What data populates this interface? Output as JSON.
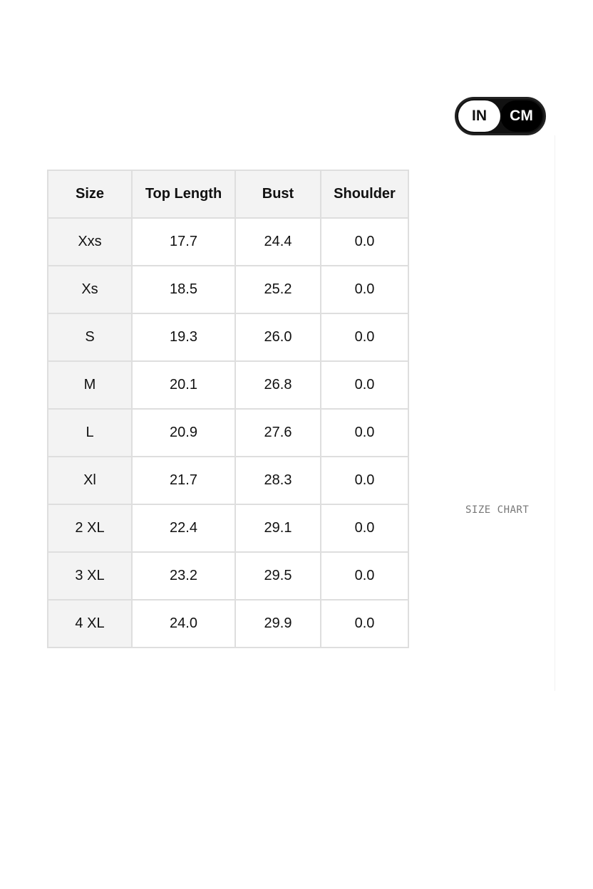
{
  "unit_toggle": {
    "options": [
      "IN",
      "CM"
    ],
    "selected": "CM"
  },
  "side_label": "SIZE CHART",
  "table": {
    "headers": [
      "Size",
      "Top Length",
      "Bust",
      "Shoulder"
    ],
    "rows": [
      [
        "Xxs",
        "17.7",
        "24.4",
        "0.0"
      ],
      [
        "Xs",
        "18.5",
        "25.2",
        "0.0"
      ],
      [
        "S",
        "19.3",
        "26.0",
        "0.0"
      ],
      [
        "M",
        "20.1",
        "26.8",
        "0.0"
      ],
      [
        "L",
        "20.9",
        "27.6",
        "0.0"
      ],
      [
        "Xl",
        "21.7",
        "28.3",
        "0.0"
      ],
      [
        "2 XL",
        "22.4",
        "29.1",
        "0.0"
      ],
      [
        "3 XL",
        "23.2",
        "29.5",
        "0.0"
      ],
      [
        "4 XL",
        "24.0",
        "29.9",
        "0.0"
      ]
    ]
  }
}
